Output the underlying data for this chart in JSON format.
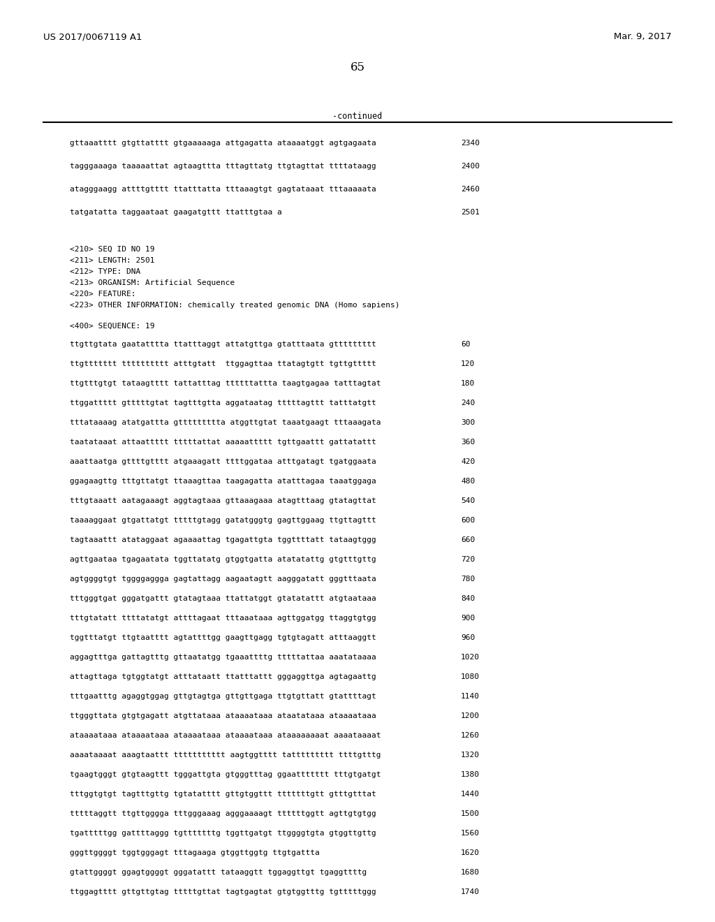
{
  "left_header": "US 2017/0067119 A1",
  "right_header": "Mar. 9, 2017",
  "page_number": "65",
  "continued_label": "-continued",
  "background_color": "#ffffff",
  "font_size": 8.0,
  "header_font_size": 9.5,
  "page_num_font_size": 12,
  "lines_before_continued": [
    {
      "seq": "gttaaatttt gtgttatttt gtgaaaaaga attgagatta ataaaatggt agtgagaata",
      "num": "2340"
    },
    {
      "seq": "tagggaaaga taaaaattat agtaagttta tttagttatg ttgtagttat ttttataagg",
      "num": "2400"
    },
    {
      "seq": "atagggaagg attttgtttt ttatttatta tttaaagtgt gagtataaat tttaaaaata",
      "num": "2460"
    },
    {
      "seq": "tatgatatta taggaataat gaagatgttt ttatttgtaa a",
      "num": "2501"
    }
  ],
  "metadata_lines": [
    "<210> SEQ ID NO 19",
    "<211> LENGTH: 2501",
    "<212> TYPE: DNA",
    "<213> ORGANISM: Artificial Sequence",
    "<220> FEATURE:",
    "<223> OTHER INFORMATION: chemically treated genomic DNA (Homo sapiens)"
  ],
  "sequence_label": "<400> SEQUENCE: 19",
  "sequence_lines": [
    {
      "seq": "ttgttgtata gaatatttta ttatttaggt attatgttga gtatttaata gttttttttt",
      "num": "60"
    },
    {
      "seq": "ttgttttttt tttttttttt atttgtatt  ttggagttaa ttatagtgtt tgttgttttt",
      "num": "120"
    },
    {
      "seq": "ttgtttgtgt tataagtttt tattatttag ttttttattta taagtgagaa tatttagtat",
      "num": "180"
    },
    {
      "seq": "ttggattttt gtttttgtat tagtttgtta aggataatag tttttagttt tatttatgtt",
      "num": "240"
    },
    {
      "seq": "tttataaaag atatgattta gttttttttta atggttgtat taaatgaagt tttaaagata",
      "num": "300"
    },
    {
      "seq": "taatataaat attaattttt tttttattat aaaaattttt tgttgaattt gattatattt",
      "num": "360"
    },
    {
      "seq": "aaattaatga gttttgtttt atgaaagatt ttttggataa atttgatagt tgatggaata",
      "num": "420"
    },
    {
      "seq": "ggagaagttg tttgttatgt ttaaagttaa taagagatta atatttagaa taaatggaga",
      "num": "480"
    },
    {
      "seq": "tttgtaaatt aatagaaagt aggtagtaaa gttaaagaaa atagtttaag gtatagttat",
      "num": "540"
    },
    {
      "seq": "taaaaggaat gtgattatgt tttttgtagg gatatgggtg gagttggaag ttgttagttt",
      "num": "600"
    },
    {
      "seq": "tagtaaattt atataggaat agaaaattag tgagattgta tggttttatt tataagtggg",
      "num": "660"
    },
    {
      "seq": "agttgaataa tgagaatata tggttatatg gtggtgatta atatatattg gtgtttgttg",
      "num": "720"
    },
    {
      "seq": "agtggggtgt tggggaggga gagtattagg aagaatagtt aagggatatt gggtttaata",
      "num": "780"
    },
    {
      "seq": "tttgggtgat gggatgattt gtatagtaaa ttattatggt gtatatattt atgtaataaa",
      "num": "840"
    },
    {
      "seq": "tttgtatatt ttttatatgt attttagaat tttaaataaa agttggatgg ttaggtgtgg",
      "num": "900"
    },
    {
      "seq": "tggtttatgt ttgtaatttt agtattttgg gaagttgagg tgtgtagatt atttaaggtt",
      "num": "960"
    },
    {
      "seq": "aggagtttga gattagtttg gttaatatgg tgaaattttg tttttattaa aaatataaaa",
      "num": "1020"
    },
    {
      "seq": "attagttaga tgtggtatgt atttataatt ttatttattt gggaggttga agtagaattg",
      "num": "1080"
    },
    {
      "seq": "tttgaatttg agaggtggag gttgtagtga gttgttgaga ttgtgttatt gtattttagt",
      "num": "1140"
    },
    {
      "seq": "ttgggttata gtgtgagatt atgttataaa ataaaataaa ataatataaa ataaaataaa",
      "num": "1200"
    },
    {
      "seq": "ataaaataaa ataaaataaa ataaaataaa ataaaataaa ataaaaaaaat aaaataaaat",
      "num": "1260"
    },
    {
      "seq": "aaaataaaat aaagtaattt ttttttttttt aagtggtttt tattttttttt ttttgtttg",
      "num": "1320"
    },
    {
      "seq": "tgaagtgggt gtgtaagttt tgggattgta gtgggtttag ggaattttttt tttgtgatgt",
      "num": "1380"
    },
    {
      "seq": "tttggtgtgt tagtttgttg tgtatatttt gttgtggttt tttttttgtt gtttgtttat",
      "num": "1440"
    },
    {
      "seq": "tttttaggtt ttgttgggga tttgggaaag agggaaaagt ttttttggtt agttgtgtgg",
      "num": "1500"
    },
    {
      "seq": "tgatttttgg gattttaggg tgtttttttg tggttgatgt ttggggtgta gtggttgttg",
      "num": "1560"
    },
    {
      "seq": "gggttggggt tggtgggagt tttagaaga gtggttggtg ttgtgattta",
      "num": "1620"
    },
    {
      "seq": "gtattggggt ggagtggggt gggatattt tataaggtt tggaggttgt tgaggttttg",
      "num": "1680"
    },
    {
      "seq": "ttggagtttt gttgttgtag tttttgttat tagtgagtat gtgtggtttg tgtttttggg",
      "num": "1740"
    }
  ]
}
